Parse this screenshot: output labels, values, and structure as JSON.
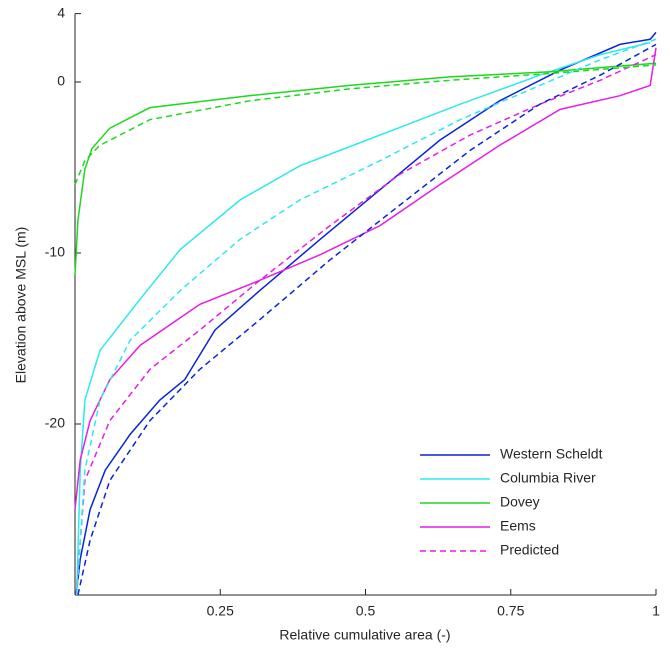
{
  "chart_data": {
    "type": "line",
    "xlabel": "Relative cumulative area (-)",
    "ylabel": "Elevation above MSL (m)",
    "xlim": [
      0,
      1
    ],
    "xticks": [
      0.25,
      0.5,
      0.75,
      1
    ],
    "ylim": [
      -30,
      4
    ],
    "yticks": [
      4,
      0,
      -10,
      -20
    ],
    "legend": "lower right",
    "series": [
      {
        "name": "Western Scheldt",
        "color": "#0b24d6",
        "dash": false,
        "x": [
          0.002,
          0.009,
          0.026,
          0.052,
          0.095,
          0.146,
          0.189,
          0.241,
          0.318,
          0.422,
          0.525,
          0.628,
          0.731,
          0.835,
          0.938,
          0.99,
          1
        ],
        "values": [
          -30,
          -27.9,
          -25,
          -22.7,
          -20.6,
          -18.6,
          -17.4,
          -14.5,
          -12.2,
          -9.2,
          -6.3,
          -3.4,
          -1.1,
          0.7,
          2.2,
          2.5,
          2.9
        ]
      },
      {
        "name": "Columbia River",
        "color": "#2ee8ee",
        "dash": false,
        "x": [
          0.003,
          0.009,
          0.017,
          0.043,
          0.112,
          0.181,
          0.284,
          0.387,
          0.525,
          0.663,
          0.8,
          0.904,
          0.99
        ],
        "values": [
          -30,
          -22.7,
          -18.6,
          -15.7,
          -12.7,
          -9.8,
          -6.9,
          -4.9,
          -3.1,
          -1.3,
          0.4,
          1.6,
          2.3
        ]
      },
      {
        "name": "Dovey",
        "color": "#1ed81e",
        "dash": false,
        "x": [
          0,
          0.005,
          0.017,
          0.029,
          0.06,
          0.129,
          0.301,
          0.473,
          0.645,
          0.818,
          1
        ],
        "values": [
          -11.3,
          -8.1,
          -5.1,
          -3.9,
          -2.7,
          -1.5,
          -0.8,
          -0.2,
          0.3,
          0.6,
          1.1
        ]
      },
      {
        "name": "Eems",
        "color": "#e61ee6",
        "dash": false,
        "x": [
          0,
          0.009,
          0.026,
          0.06,
          0.112,
          0.215,
          0.318,
          0.422,
          0.525,
          0.628,
          0.731,
          0.835,
          0.938,
          0.99,
          1
        ],
        "values": [
          -25,
          -22.1,
          -19.8,
          -17.4,
          -15.4,
          -13,
          -11.6,
          -10.1,
          -8.4,
          -6,
          -3.7,
          -1.6,
          -0.8,
          -0.2,
          2
        ]
      },
      {
        "name": "Predicted",
        "color": "#e61ee6",
        "dash": true,
        "x": [
          0.002,
          0.017,
          0.06,
          0.129,
          0.215,
          0.318,
          0.439,
          0.559,
          0.68,
          0.8,
          0.904,
          1
        ],
        "values": [
          -30,
          -23.3,
          -19.8,
          -16.8,
          -14.5,
          -11.6,
          -8.4,
          -5.4,
          -3.1,
          -1.3,
          0.1,
          1.6
        ]
      },
      {
        "color": "#0b24d6",
        "dash": true,
        "x": [
          0.005,
          0.026,
          0.06,
          0.129,
          0.215,
          0.318,
          0.439,
          0.559,
          0.68,
          0.8,
          0.904,
          1
        ],
        "values": [
          -30,
          -26.8,
          -23.3,
          -19.8,
          -16.8,
          -13.9,
          -10.4,
          -7.2,
          -4,
          -1.3,
          0.4,
          2.2
        ]
      },
      {
        "color": "#2ee8ee",
        "dash": true,
        "x": [
          0.003,
          0.017,
          0.043,
          0.095,
          0.181,
          0.284,
          0.387,
          0.525,
          0.663,
          0.8,
          0.904,
          1
        ],
        "values": [
          -30,
          -22.7,
          -18.6,
          -15.1,
          -12.2,
          -9.2,
          -6.9,
          -4.6,
          -2.2,
          -0.2,
          1.3,
          2.5
        ]
      },
      {
        "color": "#1ed81e",
        "dash": true,
        "x": [
          0,
          0.017,
          0.043,
          0.129,
          0.301,
          0.473,
          0.645,
          0.818,
          1
        ],
        "values": [
          -6,
          -4.6,
          -3.7,
          -2.2,
          -1.1,
          -0.4,
          0.1,
          0.5,
          1
        ]
      }
    ]
  }
}
